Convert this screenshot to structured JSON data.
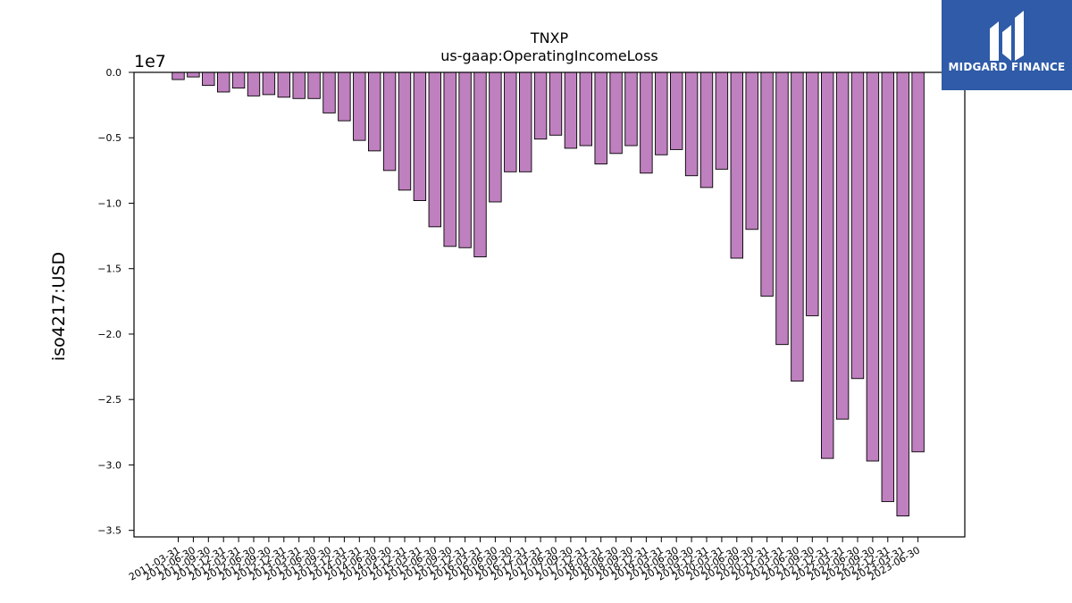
{
  "chart_data": {
    "type": "bar",
    "title": "TNXP",
    "subtitle": "us-gaap:OperatingIncomeLoss",
    "ylabel": "iso4217:USD",
    "offset_label": "1e7",
    "ylim": [
      -35500000,
      0
    ],
    "yticks": [
      0,
      -5000000,
      -10000000,
      -15000000,
      -20000000,
      -25000000,
      -30000000,
      -35000000
    ],
    "ytick_labels": [
      "0.0",
      "−0.5",
      "−1.0",
      "−1.5",
      "−2.0",
      "−2.5",
      "−3.0",
      "−3.5"
    ],
    "bar_color": "#bf80bf",
    "categories": [
      "2011-03-31",
      "2011-06-30",
      "2011-09-30",
      "2011-12-31",
      "2012-03-31",
      "2012-06-30",
      "2012-09-30",
      "2012-12-31",
      "2013-03-31",
      "2013-06-30",
      "2013-09-30",
      "2013-12-31",
      "2014-03-31",
      "2014-06-30",
      "2014-09-30",
      "2014-12-31",
      "2015-03-31",
      "2015-06-30",
      "2015-09-30",
      "2015-12-31",
      "2016-03-31",
      "2016-06-30",
      "2016-09-30",
      "2016-12-31",
      "2017-03-31",
      "2017-06-30",
      "2017-09-30",
      "2017-12-31",
      "2018-03-31",
      "2018-06-30",
      "2018-09-30",
      "2018-12-31",
      "2019-03-31",
      "2019-06-30",
      "2019-09-30",
      "2019-12-31",
      "2020-03-31",
      "2020-06-30",
      "2020-09-30",
      "2020-12-31",
      "2021-03-31",
      "2021-06-30",
      "2021-09-30",
      "2021-12-31",
      "2022-03-31",
      "2022-06-30",
      "2022-09-30",
      "2022-12-31",
      "2023-03-31",
      "2023-06-30"
    ],
    "values": [
      -550000,
      -350000,
      -1000000,
      -1500000,
      -1200000,
      -1800000,
      -1700000,
      -1900000,
      -2000000,
      -2000000,
      -3100000,
      -3700000,
      -5200000,
      -6000000,
      -7500000,
      -9000000,
      -9800000,
      -11800000,
      -13300000,
      -13400000,
      -14100000,
      -9900000,
      -7600000,
      -7600000,
      -5100000,
      -4800000,
      -5800000,
      -5600000,
      -7000000,
      -6200000,
      -5600000,
      -7700000,
      -6300000,
      -5900000,
      -7900000,
      -8800000,
      -7400000,
      -14200000,
      -12000000,
      -17100000,
      -20800000,
      -23600000,
      -18600000,
      -29500000,
      -26500000,
      -23400000,
      -29700000,
      -32800000,
      -33900000,
      -29000000
    ]
  },
  "logo": {
    "text": "MIDGARD FINANCE",
    "bg_color": "#2f5ba8"
  }
}
